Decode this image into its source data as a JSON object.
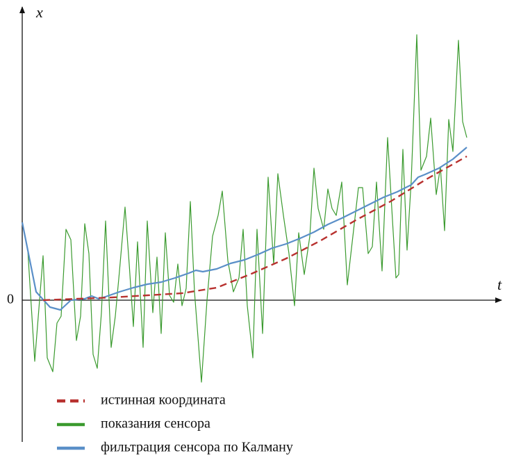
{
  "chart_data": {
    "type": "line",
    "x_label": "t",
    "y_label": "x",
    "xlim": [
      0,
      68.3
    ],
    "ylim": [
      -20.8,
      41.2
    ],
    "yticks": [
      0
    ],
    "legend": "bottom-left",
    "series": [
      {
        "name": "истинная координата",
        "color": "#b8312f",
        "dashed": true,
        "x": [
          3,
          8,
          13,
          18,
          23,
          28,
          33,
          38,
          43,
          48,
          53,
          58,
          64
        ],
        "values": [
          0,
          0.2,
          0.4,
          0.7,
          1.0,
          1.8,
          3.8,
          6.0,
          8.6,
          11.5,
          14.2,
          17.3,
          20.7
        ]
      },
      {
        "name": "показания сенсора",
        "color": "#3a9a2e",
        "dashed": false,
        "x": [
          0,
          0.8,
          1.8,
          3.0,
          3.6,
          4.4,
          5.0,
          5.6,
          6.3,
          7.0,
          7.8,
          8.4,
          9.0,
          9.6,
          10.2,
          10.8,
          11.4,
          12.0,
          12.8,
          13.4,
          14.0,
          14.8,
          15.4,
          16.0,
          16.6,
          17.4,
          18.0,
          18.8,
          19.4,
          20.0,
          20.6,
          21.2,
          21.8,
          22.4,
          23.0,
          23.6,
          24.2,
          24.8,
          25.8,
          26.6,
          27.4,
          28.2,
          28.8,
          29.6,
          30.4,
          31.2,
          31.8,
          32.4,
          33.2,
          33.8,
          34.6,
          35.4,
          36.2,
          36.8,
          37.6,
          38.4,
          39.2,
          39.8,
          40.6,
          41.4,
          42.0,
          42.6,
          43.4,
          44.0,
          44.6,
          45.2,
          46.0,
          46.8,
          47.6,
          48.4,
          49.0,
          49.8,
          50.4,
          51.0,
          51.8,
          52.6,
          53.2,
          53.8,
          54.2,
          54.8,
          55.4,
          56.0,
          56.8,
          57.4,
          58.2,
          58.8,
          59.6,
          60.2,
          60.8,
          61.4,
          62.0,
          62.8,
          63.4,
          64.0
        ],
        "values": [
          11.2,
          7.2,
          -8.8,
          6.4,
          -8.3,
          -10.3,
          -3.3,
          -2.3,
          10.2,
          8.7,
          -5.8,
          -2.3,
          11.0,
          6.7,
          -7.8,
          -9.8,
          -1.8,
          11.4,
          -6.8,
          -2.3,
          4.2,
          13.4,
          5.2,
          -3.8,
          8.4,
          -6.8,
          11.4,
          -1.8,
          6.2,
          -4.8,
          9.7,
          0.7,
          -0.3,
          5.2,
          -0.8,
          1.7,
          14.2,
          1.2,
          -11.8,
          0,
          9.2,
          12.2,
          15.7,
          5.7,
          1.2,
          3.2,
          10.2,
          -0.8,
          -8.3,
          10.2,
          -4.8,
          17.7,
          5.2,
          18.2,
          12.2,
          6.7,
          -0.8,
          9.7,
          3.7,
          9.2,
          19.0,
          13.2,
          10.2,
          16.0,
          13.2,
          12.2,
          17.0,
          2.2,
          9.2,
          16.2,
          16.2,
          6.7,
          7.7,
          17.0,
          4.2,
          23.4,
          13.2,
          3.2,
          3.7,
          21.7,
          7.2,
          17.2,
          38.2,
          18.7,
          20.7,
          26.2,
          15.2,
          19.2,
          10.0,
          26.0,
          21.4,
          37.4,
          25.7,
          23.4
        ]
      },
      {
        "name": "фильтрация сенсора по Калману",
        "color": "#5a8fc8",
        "dashed": false,
        "x": [
          0,
          2,
          4,
          5.5,
          7,
          9,
          10,
          11,
          12,
          14,
          16,
          18,
          20,
          22,
          24,
          25,
          26,
          28,
          30,
          32,
          34,
          36,
          38,
          40,
          42,
          44,
          46,
          48,
          50,
          52,
          54,
          56,
          57,
          58,
          60,
          62,
          64
        ],
        "values": [
          11.2,
          1.2,
          -1.0,
          -1.4,
          0.0,
          0.2,
          0.6,
          0.2,
          0.5,
          1.2,
          1.8,
          2.3,
          2.6,
          3.2,
          3.9,
          4.3,
          4.1,
          4.5,
          5.3,
          5.8,
          6.6,
          7.5,
          8.1,
          8.9,
          9.8,
          10.9,
          11.8,
          12.8,
          13.8,
          14.8,
          15.6,
          16.6,
          17.7,
          18.1,
          19.0,
          20.3,
          22.0
        ]
      }
    ]
  }
}
